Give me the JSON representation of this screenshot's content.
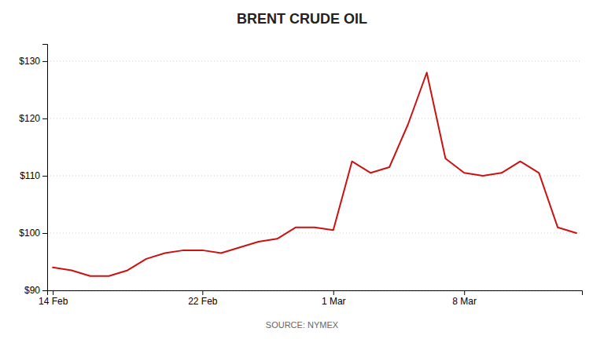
{
  "chart_data": {
    "type": "line",
    "title": "BRENT CRUDE OIL",
    "annotations": [
      "SOURCE: NYMEX"
    ],
    "color": "#cc1111",
    "x": [
      0,
      1,
      2,
      3,
      4,
      5,
      6,
      7,
      8,
      9,
      10,
      11,
      12,
      13,
      14,
      15,
      16,
      17,
      18,
      19,
      20,
      21,
      22,
      23,
      24,
      25,
      26,
      27,
      28
    ],
    "values": [
      94.0,
      93.5,
      92.5,
      92.5,
      93.5,
      95.5,
      96.5,
      97.0,
      97.0,
      96.5,
      97.5,
      98.5,
      99.0,
      101.0,
      101.0,
      100.5,
      112.5,
      110.5,
      111.5,
      119.0,
      128.0,
      113.0,
      110.5,
      110.0,
      110.5,
      112.5,
      110.5,
      101.0,
      100.0
    ],
    "xlim": [
      -0.3,
      28.3
    ],
    "xticks": [
      {
        "value": 0,
        "label": "14 Feb"
      },
      {
        "value": 8,
        "label": "22 Feb"
      },
      {
        "value": 15,
        "label": "1 Mar"
      },
      {
        "value": 22,
        "label": "8 Mar"
      }
    ],
    "ylim": [
      90,
      133
    ],
    "yticks": [
      {
        "value": 90,
        "label": "$90"
      },
      {
        "value": 100,
        "label": "$100"
      },
      {
        "value": 110,
        "label": "$110"
      },
      {
        "value": 120,
        "label": "$120"
      },
      {
        "value": 130,
        "label": "$130"
      }
    ],
    "grid": true
  }
}
